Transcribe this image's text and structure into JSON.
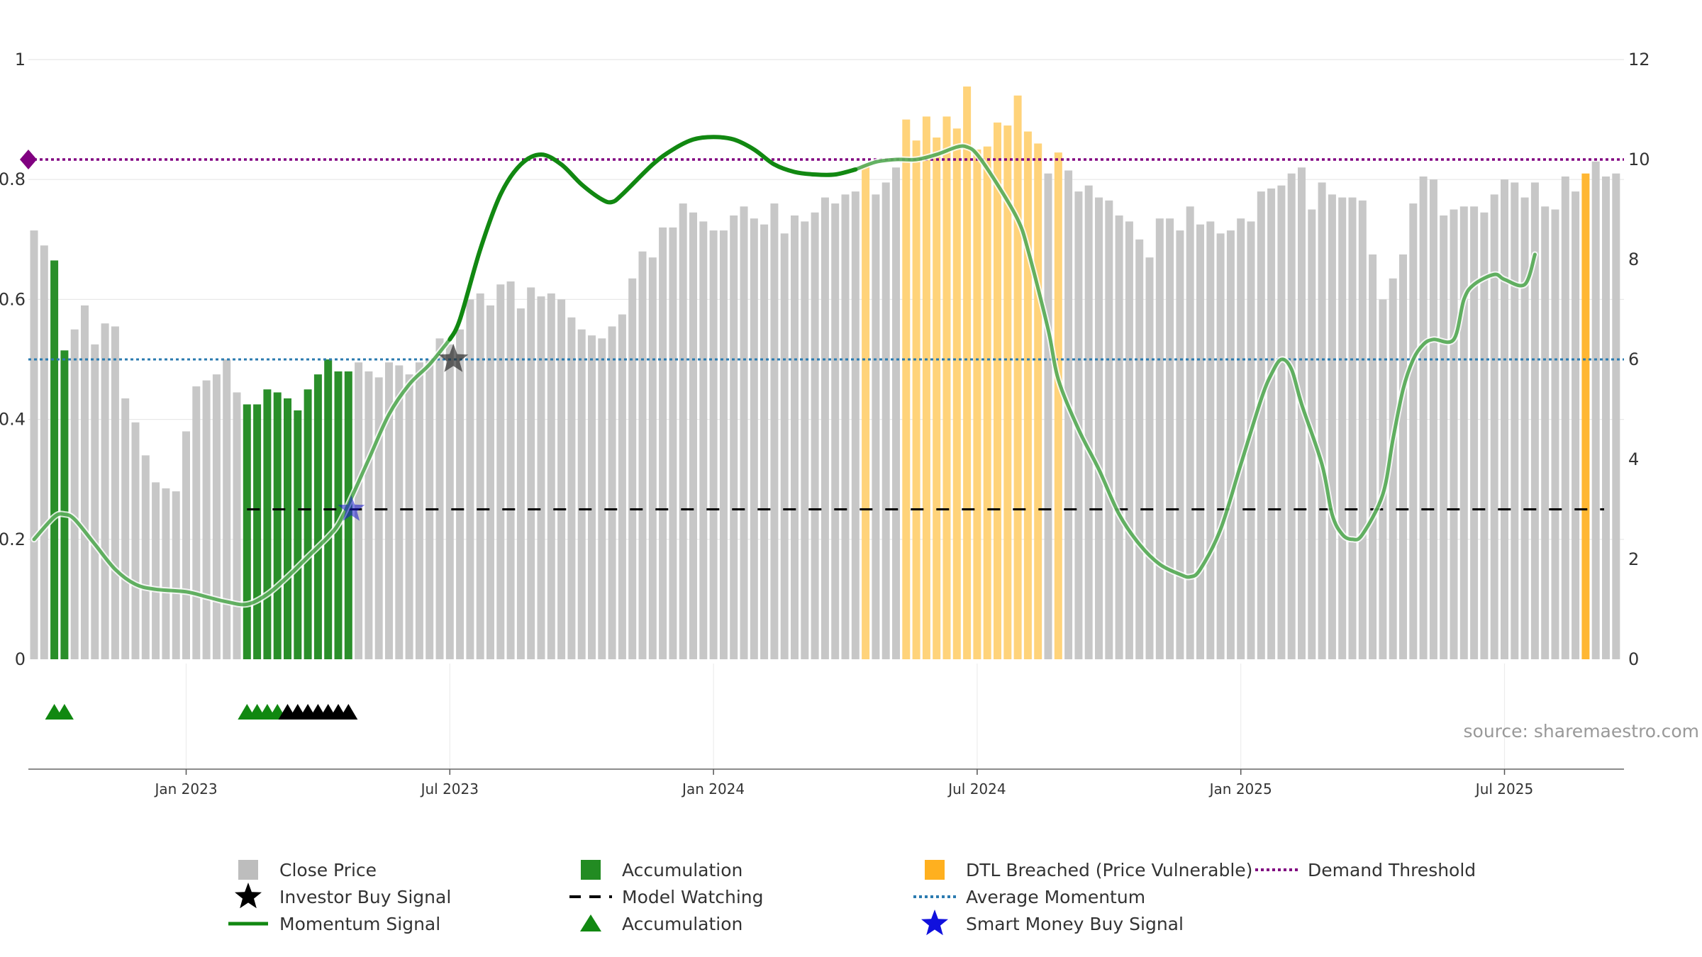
{
  "chart_data": {
    "type": "bar",
    "source": "source: sharemaestro.com",
    "left_axis": {
      "ticks": [
        "0",
        "0.2",
        "0.4",
        "0.6",
        "0.8",
        "1"
      ],
      "range": [
        0,
        1
      ]
    },
    "right_axis": {
      "ticks": [
        "0",
        "2",
        "4",
        "6",
        "8",
        "10",
        "12"
      ],
      "range": [
        0,
        12
      ]
    },
    "x_axis": {
      "ticks": [
        "Jan 2023",
        "Jul 2023",
        "Jan 2024",
        "Jul 2024",
        "Jan 2025",
        "Jul 2025"
      ],
      "tick_week_index": [
        15,
        41,
        67,
        93,
        119,
        145
      ]
    },
    "colors": {
      "close": "#c7c7c7",
      "accumulation": "#2a8f2a",
      "dtl": "#ffd37a",
      "dtl_strong": "#ffb733",
      "momentum": "#118811",
      "average_momentum": "#2b7bb0",
      "demand_threshold": "#800080",
      "model_watching": "#000000",
      "smart_money": "#1515cc",
      "investor": "#000000"
    },
    "close_price": [
      0.715,
      0.69,
      0.665,
      0.515,
      0.55,
      0.59,
      0.525,
      0.56,
      0.555,
      0.435,
      0.395,
      0.34,
      0.295,
      0.285,
      0.28,
      0.38,
      0.455,
      0.465,
      0.475,
      0.5,
      0.445,
      0.425,
      0.425,
      0.45,
      0.445,
      0.435,
      0.415,
      0.45,
      0.475,
      0.5,
      0.48,
      0.48,
      0.495,
      0.48,
      0.47,
      0.495,
      0.49,
      0.475,
      0.495,
      0.5,
      0.535,
      0.525,
      0.55,
      0.6,
      0.61,
      0.59,
      0.625,
      0.63,
      0.585,
      0.62,
      0.605,
      0.61,
      0.6,
      0.57,
      0.55,
      0.54,
      0.535,
      0.555,
      0.575,
      0.635,
      0.68,
      0.67,
      0.72,
      0.72,
      0.76,
      0.745,
      0.73,
      0.715,
      0.715,
      0.74,
      0.755,
      0.735,
      0.725,
      0.76,
      0.71,
      0.74,
      0.73,
      0.745,
      0.77,
      0.76,
      0.775,
      0.78,
      0.825,
      0.775,
      0.795,
      0.82,
      0.9,
      0.865,
      0.905,
      0.87,
      0.905,
      0.885,
      0.955,
      0.85,
      0.855,
      0.895,
      0.89,
      0.94,
      0.88,
      0.86,
      0.81,
      0.845,
      0.815,
      0.78,
      0.79,
      0.77,
      0.765,
      0.74,
      0.73,
      0.7,
      0.67,
      0.735,
      0.735,
      0.715,
      0.755,
      0.725,
      0.73,
      0.71,
      0.715,
      0.735,
      0.73,
      0.78,
      0.785,
      0.79,
      0.81,
      0.82,
      0.75,
      0.795,
      0.775,
      0.77,
      0.77,
      0.765,
      0.675,
      0.6,
      0.635,
      0.675,
      0.76,
      0.805,
      0.8,
      0.74,
      0.75,
      0.755,
      0.755,
      0.745,
      0.775,
      0.8,
      0.795,
      0.77,
      0.795,
      0.755,
      0.75,
      0.805,
      0.78,
      0.81,
      0.83,
      0.805,
      0.81
    ],
    "accumulation_weeks": [
      2,
      3,
      21,
      22,
      23,
      24,
      25,
      26,
      27,
      28,
      29,
      30,
      31
    ],
    "dtl_weeks": [
      82,
      86,
      87,
      88,
      89,
      90,
      91,
      92,
      93,
      94,
      95,
      96,
      97,
      98,
      99,
      101,
      153
    ],
    "dtl_strong_weeks": [
      153
    ],
    "momentum_signal": [
      [
        0,
        2.4
      ],
      [
        2,
        2.85
      ],
      [
        3,
        2.9
      ],
      [
        4,
        2.8
      ],
      [
        6,
        2.3
      ],
      [
        8,
        1.8
      ],
      [
        10,
        1.5
      ],
      [
        12,
        1.4
      ],
      [
        15,
        1.35
      ],
      [
        17,
        1.25
      ],
      [
        19,
        1.15
      ],
      [
        21,
        1.1
      ],
      [
        23,
        1.3
      ],
      [
        25,
        1.65
      ],
      [
        27,
        2.05
      ],
      [
        29,
        2.45
      ],
      [
        30,
        2.7
      ],
      [
        31,
        3.1
      ],
      [
        33,
        4.0
      ],
      [
        35,
        4.9
      ],
      [
        37,
        5.5
      ],
      [
        39,
        5.9
      ],
      [
        41,
        6.4
      ],
      [
        42,
        6.8
      ],
      [
        44,
        8.2
      ],
      [
        46,
        9.3
      ],
      [
        48,
        9.9
      ],
      [
        50,
        10.1
      ],
      [
        52,
        9.9
      ],
      [
        54,
        9.5
      ],
      [
        56,
        9.2
      ],
      [
        57,
        9.15
      ],
      [
        58,
        9.3
      ],
      [
        61,
        9.9
      ],
      [
        63,
        10.2
      ],
      [
        65,
        10.4
      ],
      [
        67,
        10.45
      ],
      [
        69,
        10.4
      ],
      [
        71,
        10.2
      ],
      [
        73,
        9.9
      ],
      [
        75,
        9.75
      ],
      [
        77,
        9.7
      ],
      [
        79,
        9.7
      ],
      [
        81,
        9.8
      ],
      [
        83,
        9.95
      ],
      [
        85,
        10.0
      ],
      [
        87,
        10.0
      ],
      [
        89,
        10.1
      ],
      [
        91,
        10.25
      ],
      [
        92,
        10.25
      ],
      [
        93,
        10.1
      ],
      [
        95,
        9.5
      ],
      [
        97,
        8.8
      ],
      [
        98,
        8.2
      ],
      [
        100,
        6.6
      ],
      [
        101,
        5.6
      ],
      [
        103,
        4.6
      ],
      [
        105,
        3.8
      ],
      [
        107,
        2.9
      ],
      [
        109,
        2.3
      ],
      [
        111,
        1.9
      ],
      [
        113,
        1.7
      ],
      [
        114,
        1.65
      ],
      [
        115,
        1.8
      ],
      [
        117,
        2.6
      ],
      [
        119,
        3.9
      ],
      [
        121,
        5.2
      ],
      [
        122,
        5.7
      ],
      [
        123,
        6.0
      ],
      [
        124,
        5.8
      ],
      [
        125,
        5.1
      ],
      [
        127,
        3.9
      ],
      [
        128,
        2.9
      ],
      [
        129,
        2.5
      ],
      [
        130,
        2.4
      ],
      [
        131,
        2.5
      ],
      [
        133,
        3.3
      ],
      [
        134,
        4.4
      ],
      [
        135,
        5.4
      ],
      [
        136,
        6.0
      ],
      [
        137,
        6.3
      ],
      [
        138,
        6.4
      ],
      [
        140,
        6.4
      ],
      [
        141,
        7.2
      ],
      [
        142,
        7.5
      ],
      [
        144,
        7.7
      ],
      [
        145,
        7.6
      ],
      [
        147,
        7.5
      ],
      [
        148,
        8.1
      ]
    ],
    "momentum_bright_range": [
      41,
      81
    ],
    "average_momentum": 6,
    "demand_threshold": 10,
    "model_watching": {
      "value": 3,
      "from_week": 21
    },
    "smart_money_signal": {
      "week": 31,
      "value": 3
    },
    "investor_signal": {
      "week": 41,
      "value": 6
    },
    "triangle_markers": [
      {
        "week": 2,
        "color": "green"
      },
      {
        "week": 3,
        "color": "green"
      },
      {
        "week": 21,
        "color": "green"
      },
      {
        "week": 22,
        "color": "green"
      },
      {
        "week": 23,
        "color": "green"
      },
      {
        "week": 24,
        "color": "green"
      },
      {
        "week": 25,
        "color": "black"
      },
      {
        "week": 26,
        "color": "black"
      },
      {
        "week": 27,
        "color": "black"
      },
      {
        "week": 28,
        "color": "black"
      },
      {
        "week": 29,
        "color": "black"
      },
      {
        "week": 30,
        "color": "black"
      },
      {
        "week": 31,
        "color": "black"
      }
    ],
    "legend": [
      {
        "label": "Close Price",
        "symbol": "square",
        "color": "#bdbdbd"
      },
      {
        "label": "Investor Buy Signal",
        "symbol": "star",
        "color": "#000000"
      },
      {
        "label": "Momentum Signal",
        "symbol": "line",
        "color": "#118811"
      },
      {
        "label": "Accumulation",
        "symbol": "square",
        "color": "#228B22"
      },
      {
        "label": "Model Watching",
        "symbol": "dash",
        "color": "#000000"
      },
      {
        "label": "Accumulation",
        "symbol": "triangle",
        "color": "#118811"
      },
      {
        "label": "DTL Breached (Price Vulnerable)",
        "symbol": "square",
        "color": "#ffb01f"
      },
      {
        "label": "Average Momentum",
        "symbol": "dot",
        "color": "#2b7bb0"
      },
      {
        "label": "Smart Money Buy Signal",
        "symbol": "star",
        "color": "#1010dd"
      },
      {
        "label": "Demand Threshold",
        "symbol": "dot",
        "color": "#800080"
      }
    ]
  }
}
